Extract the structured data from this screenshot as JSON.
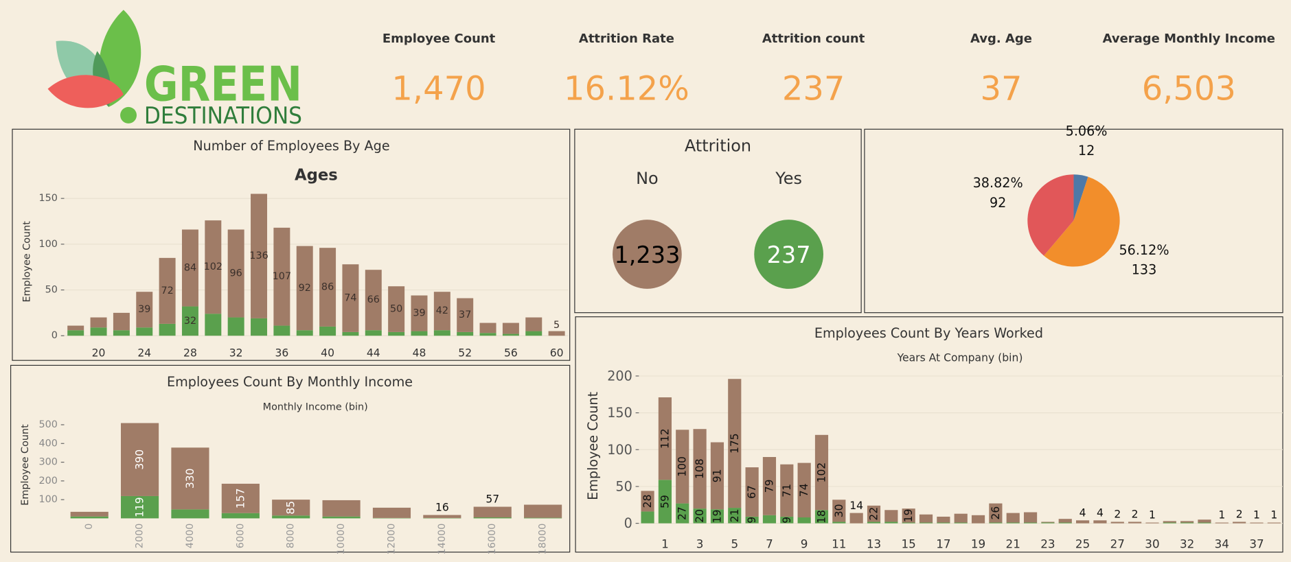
{
  "header": {
    "logo_top": "GREEN",
    "logo_bottom": "DESTINATIONS"
  },
  "kpis": [
    {
      "label": "Employee Count",
      "value": "1,470"
    },
    {
      "label": "Attrition Rate",
      "value": "16.12%"
    },
    {
      "label": "Attrition count",
      "value": "237"
    },
    {
      "label": "Avg. Age",
      "value": "37"
    },
    {
      "label": "Average Monthly Income",
      "value": "6,503"
    }
  ],
  "chart_data": [
    {
      "type": "bar",
      "stacked": true,
      "title": "Number of Employees By Age",
      "subtitle": "Ages",
      "y_label": "Employee Count",
      "x": [
        18,
        20,
        22,
        24,
        26,
        28,
        30,
        32,
        34,
        36,
        38,
        40,
        42,
        44,
        46,
        48,
        50,
        52,
        54,
        56,
        58,
        60
      ],
      "xlim": [
        17,
        61
      ],
      "xticks": [
        20,
        24,
        28,
        32,
        36,
        40,
        44,
        48,
        52,
        56,
        60
      ],
      "ylim": [
        0,
        160
      ],
      "yticks": [
        0,
        50,
        100,
        150
      ],
      "grid": true,
      "series": [
        {
          "color": "#5aa04d",
          "values": [
            6,
            9,
            6,
            9,
            13,
            32,
            24,
            20,
            19,
            11,
            6,
            10,
            4,
            6,
            4,
            5,
            6,
            4,
            3,
            2,
            5,
            0
          ],
          "value_labels": [
            null,
            null,
            null,
            null,
            null,
            "32",
            null,
            null,
            null,
            null,
            null,
            null,
            null,
            null,
            null,
            null,
            null,
            null,
            null,
            null,
            null,
            null
          ]
        },
        {
          "color": "#a07c67",
          "values": [
            5,
            11,
            19,
            39,
            72,
            84,
            102,
            96,
            136,
            107,
            92,
            86,
            74,
            66,
            50,
            39,
            42,
            37,
            11,
            12,
            15,
            5
          ],
          "value_labels": [
            null,
            null,
            null,
            "39",
            "72",
            "84",
            "102",
            "96",
            "136",
            "107",
            "92",
            "86",
            "74",
            "66",
            "50",
            "39",
            "42",
            "37",
            null,
            null,
            null,
            "5"
          ]
        }
      ]
    },
    {
      "type": "circles",
      "title": "Attrition",
      "categories": [
        "No",
        "Yes"
      ],
      "values": [
        1233,
        237
      ],
      "value_labels": [
        "1,233",
        "237"
      ],
      "colors": [
        "#a07c67",
        "#5aa04d"
      ]
    },
    {
      "type": "pie",
      "values": [
        12,
        133,
        92
      ],
      "percents": [
        5.06,
        56.12,
        38.82
      ],
      "percent_labels": [
        "5.06%",
        "56.12%",
        "38.82%"
      ],
      "colors": [
        "#4e79a7",
        "#f28e2b",
        "#e15759"
      ]
    },
    {
      "type": "bar",
      "stacked": true,
      "title": "Employees Count By Years Worked",
      "subtitle": "Years At Company (bin)",
      "y_label": "Employee Count",
      "categories": [
        null,
        "1",
        null,
        "3",
        null,
        "5",
        null,
        "7",
        null,
        "9",
        null,
        "11",
        null,
        "13",
        null,
        "15",
        null,
        "17",
        null,
        "19",
        null,
        "21",
        null,
        "23",
        null,
        "25",
        null,
        "27",
        null,
        "30",
        null,
        "32",
        null,
        "34",
        null,
        "37",
        null
      ],
      "ylim": [
        0,
        210
      ],
      "yticks": [
        0,
        50,
        100,
        150,
        200
      ],
      "grid": true,
      "series": [
        {
          "color": "#5aa04d",
          "values": [
            16,
            59,
            27,
            20,
            19,
            21,
            9,
            11,
            9,
            8,
            18,
            2,
            0,
            2,
            2,
            1,
            1,
            1,
            1,
            0,
            1,
            1,
            1,
            1,
            1,
            0,
            0,
            0,
            0,
            0,
            1,
            1,
            1,
            0,
            0,
            0,
            0
          ],
          "value_labels": [
            null,
            "59",
            "27",
            "20",
            "19",
            "21",
            "9",
            null,
            "9",
            null,
            "18",
            null,
            null,
            null,
            null,
            null,
            null,
            null,
            null,
            null,
            null,
            null,
            null,
            null,
            null,
            null,
            null,
            null,
            null,
            null,
            null,
            null,
            null,
            null,
            null,
            null,
            null
          ]
        },
        {
          "color": "#a07c67",
          "values": [
            28,
            112,
            100,
            108,
            91,
            175,
            67,
            79,
            71,
            74,
            102,
            30,
            14,
            22,
            16,
            19,
            11,
            8,
            12,
            11,
            26,
            13,
            14,
            1,
            5,
            4,
            4,
            2,
            2,
            1,
            2,
            2,
            4,
            1,
            2,
            1,
            1
          ],
          "value_labels": [
            "28",
            "112",
            "100",
            "108",
            "91",
            "175",
            "67",
            "79",
            "71",
            "74",
            "102",
            "30",
            "14",
            "22",
            null,
            "19",
            null,
            null,
            null,
            null,
            "26",
            null,
            null,
            null,
            null,
            "4",
            "4",
            "2",
            "2",
            "1",
            null,
            null,
            null,
            "1",
            "2",
            "1",
            "1"
          ]
        }
      ]
    },
    {
      "type": "bar",
      "stacked": true,
      "title": "Employees Count By Monthly Income",
      "subtitle": "Monthly Income (bin)",
      "y_label": "Employee Count",
      "categories": [
        "0",
        "2000",
        "4000",
        "6000",
        "8000",
        "10000",
        "12000",
        "14000",
        "16000",
        "18000"
      ],
      "ylim": [
        0,
        530
      ],
      "yticks": [
        100,
        200,
        300,
        400,
        500
      ],
      "grid": false,
      "series": [
        {
          "color": "#5aa04d",
          "values": [
            10,
            119,
            48,
            28,
            15,
            10,
            2,
            2,
            5,
            3
          ],
          "value_labels": [
            null,
            "119",
            null,
            null,
            null,
            null,
            null,
            null,
            null,
            null
          ]
        },
        {
          "color": "#a07c67",
          "values": [
            25,
            390,
            330,
            157,
            85,
            87,
            55,
            16,
            57,
            70
          ],
          "value_labels": [
            null,
            "390",
            "330",
            "157",
            "85",
            null,
            null,
            "16",
            "57",
            null
          ]
        }
      ]
    }
  ]
}
